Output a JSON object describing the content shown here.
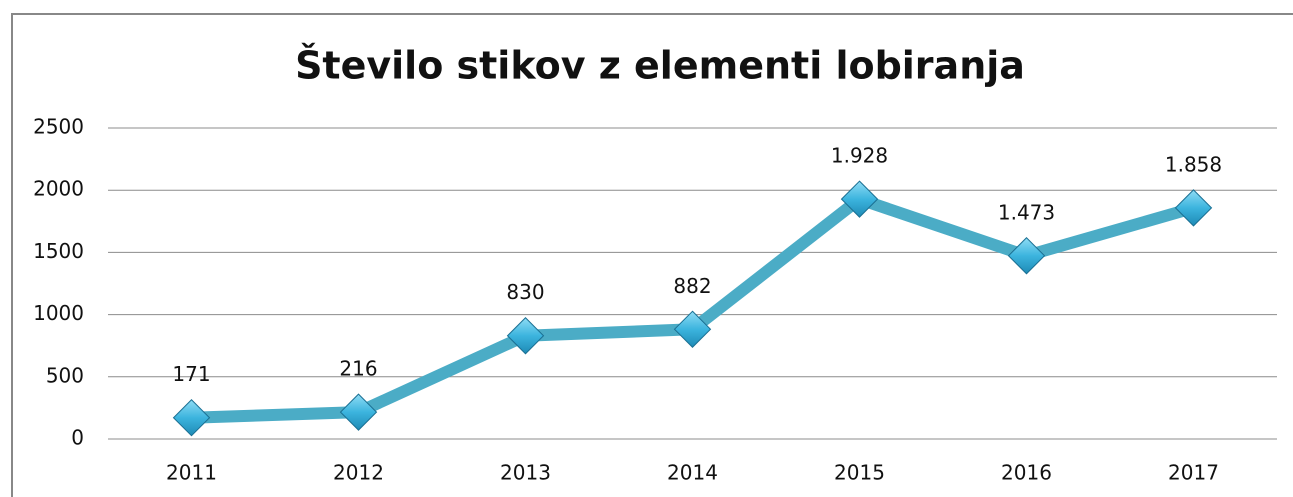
{
  "chart_data": {
    "type": "line",
    "title": "Število stikov z elementi lobiranja",
    "categories": [
      "2011",
      "2012",
      "2013",
      "2014",
      "2015",
      "2016",
      "2017"
    ],
    "series": [
      {
        "name": null,
        "color": "#4bacc6",
        "values": [
          171,
          216,
          830,
          882,
          1928,
          1473,
          1858
        ],
        "value_labels": [
          "171",
          "216",
          "830",
          "882",
          "1.928",
          "1.473",
          "1.858"
        ]
      }
    ],
    "ylim": [
      0,
      2500
    ],
    "yticks": [
      0,
      500,
      1000,
      1500,
      2000,
      2500
    ],
    "grid": true
  }
}
